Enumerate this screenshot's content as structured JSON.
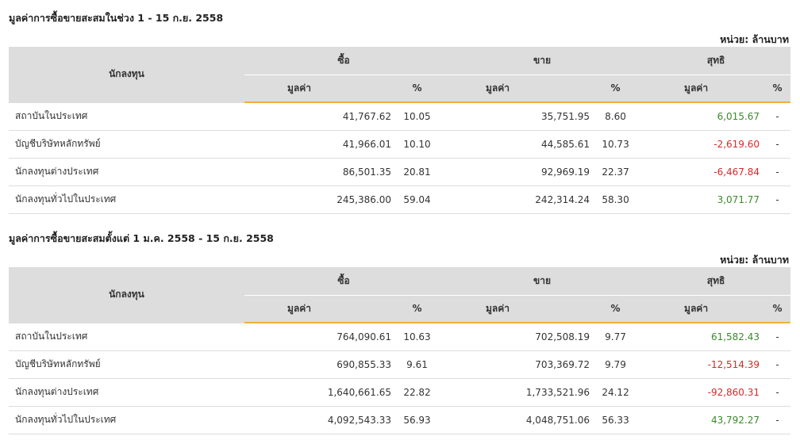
{
  "sections": [
    {
      "title": "มูลค่าการซื้อขายสะสมในช่วง 1 - 15 ก.ย. 2558",
      "unit": "หน่วย: ล้านบาท",
      "headers": {
        "investor": "นักลงทุน",
        "buy": "ซื้อ",
        "sell": "ขาย",
        "net": "สุทธิ",
        "value": "มูลค่า",
        "percent": "%"
      },
      "rows": [
        {
          "name": "สถาบันในประเทศ",
          "buy_value": "41,767.62",
          "buy_pct": "10.05",
          "sell_value": "35,751.95",
          "sell_pct": "8.60",
          "net_value": "6,015.67",
          "net_sign": "pos",
          "net_pct": "-"
        },
        {
          "name": "บัญชีบริษัทหลักทรัพย์",
          "buy_value": "41,966.01",
          "buy_pct": "10.10",
          "sell_value": "44,585.61",
          "sell_pct": "10.73",
          "net_value": "-2,619.60",
          "net_sign": "neg",
          "net_pct": "-"
        },
        {
          "name": "นักลงทุนต่างประเทศ",
          "buy_value": "86,501.35",
          "buy_pct": "20.81",
          "sell_value": "92,969.19",
          "sell_pct": "22.37",
          "net_value": "-6,467.84",
          "net_sign": "neg",
          "net_pct": "-"
        },
        {
          "name": "นักลงทุนทั่วไปในประเทศ",
          "buy_value": "245,386.00",
          "buy_pct": "59.04",
          "sell_value": "242,314.24",
          "sell_pct": "58.30",
          "net_value": "3,071.77",
          "net_sign": "pos",
          "net_pct": "-"
        }
      ]
    },
    {
      "title": "มูลค่าการซื้อขายสะสมตั้งแต่ 1 ม.ค. 2558 - 15 ก.ย. 2558",
      "unit": "หน่วย: ล้านบาท",
      "headers": {
        "investor": "นักลงทุน",
        "buy": "ซื้อ",
        "sell": "ขาย",
        "net": "สุทธิ",
        "value": "มูลค่า",
        "percent": "%"
      },
      "rows": [
        {
          "name": "สถาบันในประเทศ",
          "buy_value": "764,090.61",
          "buy_pct": "10.63",
          "sell_value": "702,508.19",
          "sell_pct": "9.77",
          "net_value": "61,582.43",
          "net_sign": "pos",
          "net_pct": "-"
        },
        {
          "name": "บัญชีบริษัทหลักทรัพย์",
          "buy_value": "690,855.33",
          "buy_pct": "9.61",
          "sell_value": "703,369.72",
          "sell_pct": "9.79",
          "net_value": "-12,514.39",
          "net_sign": "neg",
          "net_pct": "-"
        },
        {
          "name": "นักลงทุนต่างประเทศ",
          "buy_value": "1,640,661.65",
          "buy_pct": "22.82",
          "sell_value": "1,733,521.96",
          "sell_pct": "24.12",
          "net_value": "-92,860.31",
          "net_sign": "neg",
          "net_pct": "-"
        },
        {
          "name": "นักลงทุนทั่วไปในประเทศ",
          "buy_value": "4,092,543.33",
          "buy_pct": "56.93",
          "sell_value": "4,048,751.06",
          "sell_pct": "56.33",
          "net_value": "43,792.27",
          "net_sign": "pos",
          "net_pct": "-"
        }
      ]
    }
  ],
  "colors": {
    "header_bg": "#dddddd",
    "accent_underline": "#f0b03c",
    "positive": "#3a8a2a",
    "negative": "#d62a2a"
  }
}
